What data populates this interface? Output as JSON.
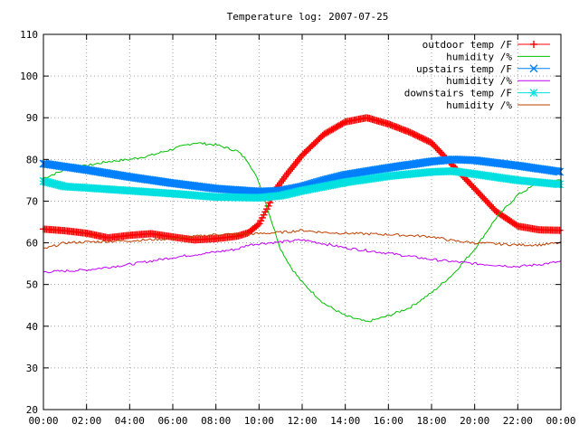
{
  "chart_data": {
    "type": "line",
    "title": "Temperature log: 2007-07-25",
    "xlabel": "",
    "ylabel": "",
    "xlim": [
      0,
      24
    ],
    "ylim": [
      20,
      110
    ],
    "grid": true,
    "legend_position": "top-right",
    "x_ticks": [
      {
        "value": 0,
        "label": "00:00"
      },
      {
        "value": 2,
        "label": "02:00"
      },
      {
        "value": 4,
        "label": "04:00"
      },
      {
        "value": 6,
        "label": "06:00"
      },
      {
        "value": 8,
        "label": "08:00"
      },
      {
        "value": 10,
        "label": "10:00"
      },
      {
        "value": 12,
        "label": "12:00"
      },
      {
        "value": 14,
        "label": "14:00"
      },
      {
        "value": 16,
        "label": "16:00"
      },
      {
        "value": 18,
        "label": "18:00"
      },
      {
        "value": 20,
        "label": "20:00"
      },
      {
        "value": 22,
        "label": "22:00"
      },
      {
        "value": 24,
        "label": "00:00"
      }
    ],
    "y_ticks": [
      20,
      30,
      40,
      50,
      60,
      70,
      80,
      90,
      100,
      110
    ],
    "series": [
      {
        "name": "outdoor temp /F",
        "color": "#ff0000",
        "marker": "plus",
        "points": [
          [
            0,
            63.3
          ],
          [
            1,
            62.9
          ],
          [
            2,
            62.3
          ],
          [
            3,
            61.2
          ],
          [
            4,
            61.8
          ],
          [
            5,
            62.2
          ],
          [
            6,
            61.4
          ],
          [
            7,
            60.7
          ],
          [
            8,
            61.0
          ],
          [
            9,
            61.6
          ],
          [
            9.5,
            62.4
          ],
          [
            10,
            64.5
          ],
          [
            10.4,
            68.5
          ],
          [
            10.8,
            73.0
          ],
          [
            11.3,
            76.5
          ],
          [
            12,
            81.0
          ],
          [
            13,
            86.0
          ],
          [
            14,
            89.0
          ],
          [
            15,
            90.0
          ],
          [
            16,
            88.5
          ],
          [
            17,
            86.5
          ],
          [
            18,
            84.0
          ],
          [
            19,
            78.5
          ],
          [
            20,
            73.0
          ],
          [
            21,
            67.5
          ],
          [
            22,
            64.0
          ],
          [
            23,
            63.1
          ],
          [
            24,
            63.0
          ]
        ]
      },
      {
        "name": "humidity /%",
        "color": "#00c000",
        "marker": "none",
        "points": [
          [
            0,
            75.5
          ],
          [
            1,
            77.5
          ],
          [
            2,
            78.5
          ],
          [
            3,
            79.5
          ],
          [
            4,
            80.0
          ],
          [
            5,
            81.0
          ],
          [
            6,
            82.5
          ],
          [
            7,
            84.0
          ],
          [
            8,
            83.5
          ],
          [
            9,
            82.0
          ],
          [
            9.5,
            79.5
          ],
          [
            10,
            74.5
          ],
          [
            10.5,
            66.5
          ],
          [
            11,
            58.5
          ],
          [
            11.5,
            54.0
          ],
          [
            12,
            50.5
          ],
          [
            13,
            45.5
          ],
          [
            14,
            42.5
          ],
          [
            15,
            41.0
          ],
          [
            16,
            42.5
          ],
          [
            17,
            44.5
          ],
          [
            18,
            48.0
          ],
          [
            19,
            52.5
          ],
          [
            20,
            58.5
          ],
          [
            21,
            66.0
          ],
          [
            22,
            71.5
          ],
          [
            23,
            74.5
          ],
          [
            24,
            75.0
          ]
        ]
      },
      {
        "name": "upstairs temp /F",
        "color": "#0080ff",
        "marker": "cross",
        "points": [
          [
            0,
            79.0
          ],
          [
            2,
            77.5
          ],
          [
            4,
            75.8
          ],
          [
            6,
            74.3
          ],
          [
            8,
            73.0
          ],
          [
            10,
            72.3
          ],
          [
            11,
            72.5
          ],
          [
            12,
            73.5
          ],
          [
            13,
            75.0
          ],
          [
            14,
            76.3
          ],
          [
            16,
            78.0
          ],
          [
            18,
            79.5
          ],
          [
            19,
            80.0
          ],
          [
            20,
            79.8
          ],
          [
            22,
            78.5
          ],
          [
            24,
            77.0
          ]
        ]
      },
      {
        "name": "humidity /%",
        "color": "#c000ff",
        "marker": "none",
        "points": [
          [
            0,
            53.0
          ],
          [
            2,
            53.5
          ],
          [
            4,
            54.8
          ],
          [
            6,
            56.5
          ],
          [
            8,
            57.8
          ],
          [
            9,
            58.5
          ],
          [
            9.5,
            59.5
          ],
          [
            10,
            59.8
          ],
          [
            11,
            60.2
          ],
          [
            12,
            60.7
          ],
          [
            13,
            59.8
          ],
          [
            14,
            58.8
          ],
          [
            16,
            57.5
          ],
          [
            18,
            56.0
          ],
          [
            20,
            55.0
          ],
          [
            22,
            54.3
          ],
          [
            23,
            54.8
          ],
          [
            24,
            55.5
          ]
        ]
      },
      {
        "name": "downstairs temp /F",
        "color": "#00e0e0",
        "marker": "star",
        "points": [
          [
            0,
            74.8
          ],
          [
            1,
            73.5
          ],
          [
            2,
            73.2
          ],
          [
            4,
            72.5
          ],
          [
            6,
            71.8
          ],
          [
            8,
            71.0
          ],
          [
            10,
            70.8
          ],
          [
            11,
            71.3
          ],
          [
            12,
            72.5
          ],
          [
            14,
            74.5
          ],
          [
            16,
            76.0
          ],
          [
            18,
            77.0
          ],
          [
            19,
            77.2
          ],
          [
            20,
            76.5
          ],
          [
            22,
            75.0
          ],
          [
            24,
            74.0
          ]
        ]
      },
      {
        "name": "humidity /%",
        "color": "#c04000",
        "marker": "none",
        "points": [
          [
            0,
            58.5
          ],
          [
            1,
            60.0
          ],
          [
            2,
            60.2
          ],
          [
            4,
            60.5
          ],
          [
            6,
            61.0
          ],
          [
            8,
            62.0
          ],
          [
            10,
            62.2
          ],
          [
            11,
            62.5
          ],
          [
            12,
            63.0
          ],
          [
            13,
            62.5
          ],
          [
            14,
            62.3
          ],
          [
            16,
            62.0
          ],
          [
            18,
            61.5
          ],
          [
            19,
            60.5
          ],
          [
            20,
            60.0
          ],
          [
            22,
            59.5
          ],
          [
            23,
            59.5
          ],
          [
            24,
            60.0
          ]
        ]
      }
    ]
  }
}
